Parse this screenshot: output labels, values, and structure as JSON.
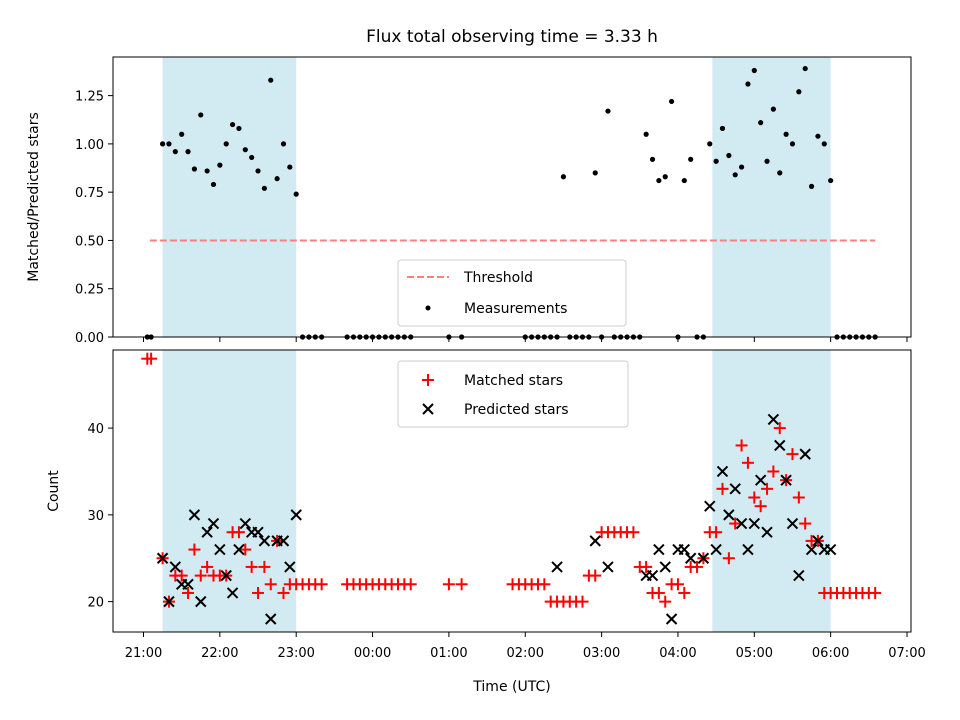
{
  "chart_data": [
    {
      "type": "scatter",
      "title": "Flux total observing time = 3.33 h",
      "xlabel": "",
      "ylabel": "Matched/Predicted stars",
      "ylim": [
        0,
        1.45
      ],
      "xlim": [
        "20:45",
        "07:05 (+1 day)"
      ],
      "yticks": [
        "0.00",
        "0.25",
        "0.50",
        "0.75",
        "1.00",
        "1.25"
      ],
      "shaded_intervals": [
        [
          "21:15",
          "23:00"
        ],
        [
          "04:27",
          "06:00"
        ]
      ],
      "shade_color": "#add8e6",
      "legend_position": "lower center",
      "series": [
        {
          "name": "Threshold",
          "kind": "dashed-line",
          "color": "#ff7f7f",
          "x": [
            "21:05",
            "06:35"
          ],
          "y": [
            0.5,
            0.5
          ]
        },
        {
          "name": "Measurements",
          "kind": "dot",
          "color": "#000000",
          "x": [
            "21:03",
            "21:06",
            "21:15",
            "21:20",
            "21:25",
            "21:30",
            "21:35",
            "21:40",
            "21:45",
            "21:50",
            "21:55",
            "22:00",
            "22:05",
            "22:10",
            "22:15",
            "22:20",
            "22:25",
            "22:30",
            "22:35",
            "22:40",
            "22:45",
            "22:50",
            "22:55",
            "23:00",
            "23:05",
            "23:10",
            "23:15",
            "23:20",
            "23:40",
            "23:45",
            "23:50",
            "23:55",
            "00:00",
            "00:05",
            "00:10",
            "00:15",
            "00:20",
            "00:25",
            "00:30",
            "01:00",
            "01:10",
            "02:00",
            "02:05",
            "02:10",
            "02:15",
            "02:20",
            "02:25",
            "02:30",
            "02:35",
            "02:40",
            "02:45",
            "02:50",
            "02:55",
            "03:00",
            "03:05",
            "03:10",
            "03:15",
            "03:20",
            "03:25",
            "03:30",
            "03:35",
            "03:40",
            "03:45",
            "03:50",
            "03:55",
            "04:00",
            "04:05",
            "04:10",
            "04:15",
            "04:20",
            "04:25",
            "04:30",
            "04:35",
            "04:40",
            "04:45",
            "04:50",
            "04:55",
            "05:00",
            "05:05",
            "05:10",
            "05:15",
            "05:20",
            "05:25",
            "05:30",
            "05:35",
            "05:40",
            "05:45",
            "05:50",
            "05:55",
            "06:00",
            "06:05",
            "06:10",
            "06:15",
            "06:20",
            "06:25",
            "06:30",
            "06:35"
          ],
          "y": [
            0,
            0,
            1.0,
            1.0,
            0.96,
            1.05,
            0.96,
            0.87,
            1.15,
            0.86,
            0.79,
            0.89,
            1.0,
            1.1,
            1.08,
            0.97,
            0.93,
            0.86,
            0.77,
            1.33,
            0.82,
            1.0,
            0.88,
            0.74,
            0,
            0,
            0,
            0,
            0,
            0,
            0,
            0,
            0,
            0,
            0,
            0,
            0,
            0,
            0,
            0,
            0,
            0,
            0,
            0,
            0,
            0,
            0,
            0.83,
            0,
            0,
            0,
            0,
            0.85,
            0,
            1.17,
            0,
            0,
            0,
            0,
            0,
            1.05,
            0.92,
            0.81,
            0.83,
            1.22,
            0,
            0.81,
            0.92,
            0,
            0,
            1.0,
            0.91,
            1.08,
            0.94,
            0.84,
            0.88,
            1.31,
            1.38,
            1.11,
            0.91,
            1.18,
            0.85,
            1.05,
            1.0,
            1.27,
            1.39,
            0.78,
            1.04,
            1.0,
            0.81,
            0,
            0,
            0,
            0,
            0,
            0,
            0
          ]
        }
      ]
    },
    {
      "type": "scatter",
      "title": "",
      "xlabel": "Time (UTC)",
      "ylabel": "Count",
      "ylim": [
        16.5,
        49
      ],
      "yticks": [
        "20",
        "30",
        "40"
      ],
      "xticks": [
        "21:00",
        "22:00",
        "23:00",
        "00:00",
        "01:00",
        "02:00",
        "03:00",
        "04:00",
        "05:00",
        "06:00",
        "07:00"
      ],
      "shaded_intervals": [
        [
          "21:15",
          "23:00"
        ],
        [
          "04:27",
          "06:00"
        ]
      ],
      "shade_color": "#add8e6",
      "legend_position": "upper center",
      "series": [
        {
          "name": "Matched stars",
          "kind": "plus",
          "color": "#ff0000",
          "x": [
            "21:03",
            "21:06",
            "21:15",
            "21:20",
            "21:25",
            "21:30",
            "21:35",
            "21:40",
            "21:45",
            "21:50",
            "21:55",
            "22:00",
            "22:05",
            "22:10",
            "22:15",
            "22:20",
            "22:25",
            "22:30",
            "22:35",
            "22:40",
            "22:45",
            "22:50",
            "22:55",
            "23:00",
            "23:05",
            "23:10",
            "23:15",
            "23:20",
            "23:40",
            "23:45",
            "23:50",
            "23:55",
            "00:00",
            "00:05",
            "00:10",
            "00:15",
            "00:20",
            "00:25",
            "00:30",
            "01:00",
            "01:10",
            "01:50",
            "01:55",
            "02:00",
            "02:05",
            "02:10",
            "02:15",
            "02:20",
            "02:25",
            "02:30",
            "02:35",
            "02:40",
            "02:45",
            "02:50",
            "02:55",
            "03:00",
            "03:05",
            "03:10",
            "03:15",
            "03:20",
            "03:25",
            "03:30",
            "03:35",
            "03:40",
            "03:45",
            "03:50",
            "03:55",
            "04:00",
            "04:05",
            "04:10",
            "04:15",
            "04:20",
            "04:25",
            "04:30",
            "04:35",
            "04:40",
            "04:45",
            "04:50",
            "04:55",
            "05:00",
            "05:05",
            "05:10",
            "05:15",
            "05:20",
            "05:25",
            "05:30",
            "05:35",
            "05:40",
            "05:45",
            "05:50",
            "05:55",
            "06:00",
            "06:05",
            "06:10",
            "06:15",
            "06:20",
            "06:25",
            "06:30",
            "06:35"
          ],
          "y": [
            48,
            48,
            25,
            20,
            23,
            23,
            21,
            26,
            23,
            24,
            23,
            23,
            23,
            28,
            28,
            26,
            24,
            21,
            24,
            22,
            27,
            21,
            22,
            22,
            22,
            22,
            22,
            22,
            22,
            22,
            22,
            22,
            22,
            22,
            22,
            22,
            22,
            22,
            22,
            22,
            22,
            22,
            22,
            22,
            22,
            22,
            22,
            20,
            20,
            20,
            20,
            20,
            20,
            23,
            23,
            28,
            28,
            28,
            28,
            28,
            28,
            24,
            24,
            21,
            21,
            20,
            22,
            22,
            21,
            24,
            24,
            25,
            28,
            28,
            33,
            25,
            29,
            38,
            36,
            32,
            31,
            33,
            35,
            40,
            34,
            37,
            32,
            29,
            27,
            27,
            21,
            21,
            21,
            21,
            21,
            21,
            21,
            21,
            21
          ]
        },
        {
          "name": "Predicted stars",
          "kind": "cross",
          "color": "#000000",
          "x": [
            "21:15",
            "21:20",
            "21:25",
            "21:30",
            "21:35",
            "21:40",
            "21:45",
            "21:50",
            "21:55",
            "22:00",
            "22:05",
            "22:10",
            "22:15",
            "22:20",
            "22:25",
            "22:30",
            "22:35",
            "22:40",
            "22:45",
            "22:50",
            "22:55",
            "23:00",
            "02:25",
            "02:55",
            "03:05",
            "03:35",
            "03:40",
            "03:45",
            "03:50",
            "03:55",
            "04:00",
            "04:05",
            "04:10",
            "04:20",
            "04:25",
            "04:30",
            "04:35",
            "04:40",
            "04:45",
            "04:50",
            "04:55",
            "05:00",
            "05:05",
            "05:10",
            "05:15",
            "05:20",
            "05:25",
            "05:30",
            "05:35",
            "05:40",
            "05:45",
            "05:50",
            "05:55",
            "06:00"
          ],
          "y": [
            25,
            20,
            24,
            22,
            22,
            30,
            20,
            28,
            29,
            26,
            23,
            21,
            26,
            29,
            28,
            28,
            27,
            18,
            27,
            27,
            24,
            30,
            24,
            27,
            24,
            23,
            23,
            26,
            24,
            18,
            26,
            26,
            25,
            25,
            31,
            26,
            35,
            30,
            33,
            29,
            26,
            29,
            34,
            28,
            41,
            38,
            34,
            29,
            23,
            37,
            26,
            27,
            26,
            26
          ]
        }
      ]
    }
  ]
}
